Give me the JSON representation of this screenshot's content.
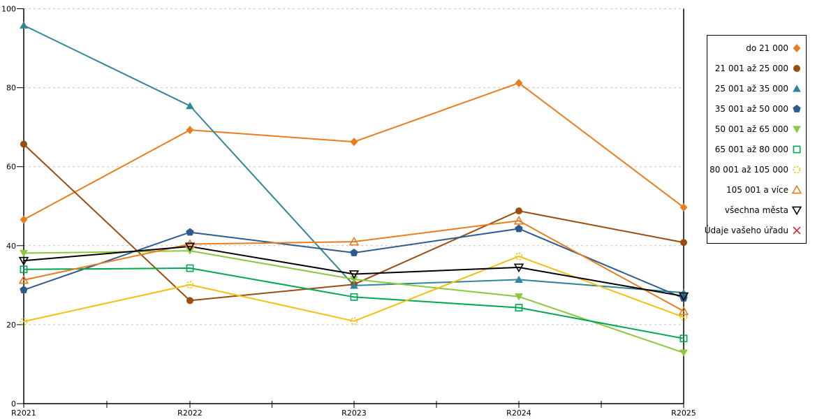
{
  "chart_data": {
    "type": "line",
    "title": "",
    "xlabel": "",
    "ylabel": "",
    "categories": [
      "R2021",
      "R2022",
      "R2023",
      "R2024",
      "R2025"
    ],
    "ylim": [
      0,
      100
    ],
    "yticks": [
      0,
      20,
      40,
      60,
      80,
      100
    ],
    "grid": "horizontal-dashed",
    "legend_position": "right",
    "colors": {
      "axis": "#000000",
      "gridline": "#c3c3c3",
      "background": "#ffffff"
    },
    "series": [
      {
        "name": "do 21 000",
        "color": "#E87D1E",
        "marker": "diamond",
        "fill": "solid",
        "values": [
          46.6,
          69.3,
          66.3,
          81.2,
          49.7
        ]
      },
      {
        "name": "21 001 až 25 000",
        "color": "#9A4D10",
        "marker": "circle",
        "fill": "solid",
        "values": [
          65.7,
          26.1,
          30.2,
          48.8,
          40.8
        ]
      },
      {
        "name": "25 001 až 35 000",
        "color": "#31859C",
        "marker": "triangle-up",
        "fill": "solid",
        "values": [
          95.8,
          75.4,
          29.9,
          31.4,
          28.1
        ]
      },
      {
        "name": "35 001 až 50 000",
        "color": "#2E5B8F",
        "marker": "pentagon",
        "fill": "solid",
        "values": [
          28.8,
          43.4,
          38.2,
          44.3,
          26.7
        ]
      },
      {
        "name": "50 001 až 65 000",
        "color": "#8DC63F",
        "marker": "triangle-down",
        "fill": "solid",
        "values": [
          38.1,
          38.7,
          31.5,
          27.1,
          12.9
        ]
      },
      {
        "name": "65 001 až 80 000",
        "color": "#00A651",
        "marker": "square",
        "fill": "open",
        "values": [
          34.0,
          34.3,
          27.0,
          24.3,
          16.5
        ]
      },
      {
        "name": "80 001 až 105 000",
        "color": "#F2C011",
        "marker": "circle",
        "fill": "open-dashed",
        "values": [
          20.8,
          30.1,
          20.9,
          37.3,
          21.9
        ]
      },
      {
        "name": "105 001 a více",
        "color": "#E87D1E",
        "marker": "triangle-up",
        "fill": "open",
        "values": [
          31.3,
          40.4,
          41.0,
          46.3,
          23.4
        ]
      },
      {
        "name": "všechna města",
        "color": "#000000",
        "marker": "triangle-down",
        "fill": "open",
        "values": [
          36.2,
          39.8,
          32.8,
          34.5,
          27.2
        ]
      },
      {
        "name": "Údaje vašeho úřadu",
        "color": "#CF2B2B",
        "marker": "x",
        "fill": "open",
        "values": []
      }
    ]
  }
}
